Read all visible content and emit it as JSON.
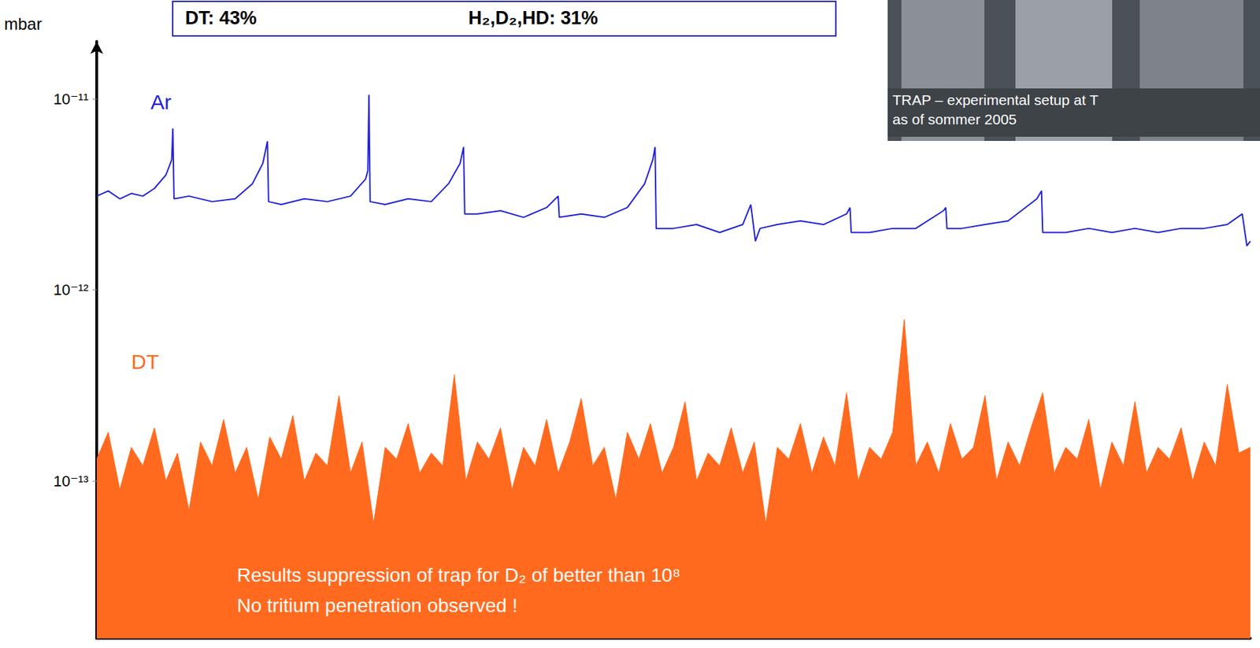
{
  "chart_data": {
    "type": "line",
    "y_label": "mbar",
    "annotations": [
      "DT: 43%",
      "H₂,D₂,HD: 31%",
      "TRAP – experimental setup at T",
      "as of sommer 2005",
      "Results suppression of trap for D₂ of better than 10⁸",
      "No tritium penetration observed !"
    ],
    "log": "y",
    "grid": false,
    "tick_labels": "y",
    "xlim": [
      0,
      100
    ],
    "ylim": [
      1.5e-14,
      2e-11
    ],
    "yticks": [
      {
        "value": 1e-11,
        "label": "10⁻¹¹"
      },
      {
        "value": 1e-12,
        "label": "10⁻¹²"
      },
      {
        "value": 1e-13,
        "label": "10⁻¹³"
      }
    ],
    "series": [
      {
        "name": "Ar",
        "color": "#2323d8",
        "type": "line",
        "x": [
          0,
          1,
          2,
          3,
          4,
          5,
          6,
          6.5,
          6.6,
          6.7,
          8,
          10,
          12,
          13.5,
          14.4,
          14.8,
          14.9,
          16,
          18,
          20,
          22,
          23.3,
          23.5,
          23.6,
          23.7,
          25,
          27,
          29,
          30.5,
          31.5,
          31.8,
          31.9,
          33,
          35,
          37,
          39,
          40,
          40.1,
          42,
          44,
          46,
          47.5,
          48.2,
          48.4,
          48.5,
          50,
          52,
          54,
          56,
          56.7,
          57.1,
          57.5,
          59,
          61,
          63,
          65,
          65.3,
          65.4,
          67,
          69,
          71,
          73.4,
          73.6,
          73.7,
          75,
          77,
          79,
          81.5,
          81.9,
          82,
          84,
          86,
          88,
          90,
          92,
          94,
          96,
          98,
          99.3,
          99.7,
          100
        ],
        "values": [
          3.1e-12,
          3.3e-12,
          3e-12,
          3.2e-12,
          3.1e-12,
          3.4e-12,
          4e-12,
          4.8e-12,
          7e-12,
          3e-12,
          3.1e-12,
          2.9e-12,
          3e-12,
          3.6e-12,
          4.6e-12,
          6e-12,
          2.9e-12,
          2.8e-12,
          3e-12,
          2.9e-12,
          3.1e-12,
          3.8e-12,
          4.2e-12,
          1.05e-11,
          2.9e-12,
          2.8e-12,
          3e-12,
          2.9e-12,
          3.6e-12,
          4.6e-12,
          5.6e-12,
          2.5e-12,
          2.5e-12,
          2.6e-12,
          2.4e-12,
          2.7e-12,
          3.1e-12,
          2.4e-12,
          2.5e-12,
          2.4e-12,
          2.7e-12,
          3.6e-12,
          4.8e-12,
          5.6e-12,
          2.1e-12,
          2.1e-12,
          2.2e-12,
          2e-12,
          2.2e-12,
          2.8e-12,
          1.8e-12,
          2.1e-12,
          2.2e-12,
          2.3e-12,
          2.2e-12,
          2.5e-12,
          2.7e-12,
          2e-12,
          2e-12,
          2.1e-12,
          2.1e-12,
          2.6e-12,
          2.7e-12,
          2.1e-12,
          2.1e-12,
          2.2e-12,
          2.3e-12,
          3e-12,
          3.3e-12,
          2e-12,
          2e-12,
          2.1e-12,
          2e-12,
          2.1e-12,
          2e-12,
          2.1e-12,
          2.1e-12,
          2.2e-12,
          2.5e-12,
          1.7e-12,
          1.8e-12
        ]
      },
      {
        "name": "DT",
        "color": "#ff6a1f",
        "type": "area",
        "x": [
          0,
          1,
          2,
          3,
          4,
          5,
          6,
          7,
          8,
          9,
          10,
          11,
          12,
          13,
          14,
          15,
          16,
          17,
          18,
          19,
          20,
          21,
          22,
          23,
          24,
          25,
          26,
          27,
          28,
          29,
          30,
          31,
          32,
          33,
          34,
          35,
          36,
          37,
          38,
          39,
          40,
          41,
          42,
          43,
          44,
          45,
          46,
          47,
          48,
          49,
          50,
          51,
          52,
          53,
          54,
          55,
          56,
          57,
          58,
          59,
          60,
          61,
          62,
          63,
          64,
          65,
          66,
          67,
          68,
          69,
          70,
          71,
          72,
          73,
          74,
          75,
          76,
          77,
          78,
          79,
          80,
          81,
          82,
          83,
          84,
          85,
          86,
          87,
          88,
          89,
          90,
          91,
          92,
          93,
          94,
          95,
          96,
          97,
          98,
          99,
          100
        ],
        "values": [
          1.3e-13,
          1.8e-13,
          9e-14,
          1.5e-13,
          1.2e-13,
          1.9e-13,
          1e-13,
          1.4e-13,
          7e-14,
          1.6e-13,
          1.2e-13,
          2.1e-13,
          1.1e-13,
          1.5e-13,
          8e-14,
          1.7e-13,
          1.3e-13,
          2.2e-13,
          1e-13,
          1.4e-13,
          1.2e-13,
          2.8e-13,
          1.1e-13,
          1.6e-13,
          6e-14,
          1.5e-13,
          1.3e-13,
          2e-13,
          1.1e-13,
          1.4e-13,
          1.2e-13,
          3.6e-13,
          1e-13,
          1.6e-13,
          1.3e-13,
          1.9e-13,
          9e-14,
          1.5e-13,
          1.2e-13,
          2.1e-13,
          1.1e-13,
          1.6e-13,
          2.7e-13,
          1.2e-13,
          1.5e-13,
          8e-14,
          1.8e-13,
          1.3e-13,
          2e-13,
          1.1e-13,
          1.5e-13,
          2.6e-13,
          1e-13,
          1.4e-13,
          1.2e-13,
          1.9e-13,
          1.1e-13,
          1.6e-13,
          6e-14,
          1.5e-13,
          1.3e-13,
          2e-13,
          1.1e-13,
          1.7e-13,
          1.2e-13,
          2.9e-13,
          1e-13,
          1.5e-13,
          1.3e-13,
          1.8e-13,
          7e-13,
          1.2e-13,
          1.6e-13,
          1.1e-13,
          2e-13,
          1.3e-13,
          1.5e-13,
          2.8e-13,
          1e-13,
          1.6e-13,
          1.2e-13,
          1.9e-13,
          2.9e-13,
          1.1e-13,
          1.5e-13,
          1.3e-13,
          2.1e-13,
          9e-14,
          1.6e-13,
          1.2e-13,
          2.6e-13,
          1.1e-13,
          1.5e-13,
          1.3e-13,
          1.9e-13,
          1e-13,
          1.6e-13,
          1.2e-13,
          3.2e-13,
          1.4e-13,
          1.5e-13
        ]
      }
    ]
  }
}
